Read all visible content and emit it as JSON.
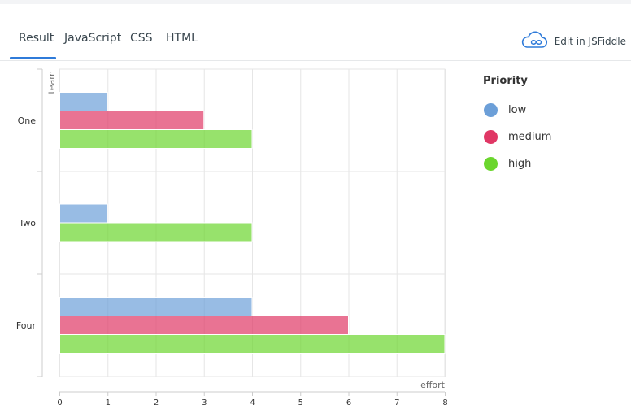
{
  "tabs": [
    {
      "label": "Result",
      "active": true
    },
    {
      "label": "JavaScript",
      "active": false
    },
    {
      "label": "CSS",
      "active": false
    },
    {
      "label": "HTML",
      "active": false
    }
  ],
  "jsfiddle": {
    "label": "Edit in JSFiddle",
    "icon": "cloud-icon"
  },
  "legend": {
    "title": "Priority"
  },
  "chart_data": {
    "type": "bar",
    "orientation": "horizontal",
    "categories": [
      "One",
      "Two",
      "Four"
    ],
    "xlabel": "effort",
    "ylabel": "team",
    "xlim": [
      0,
      8
    ],
    "xticks": [
      0,
      1,
      2,
      3,
      4,
      5,
      6,
      7,
      8
    ],
    "grid": true,
    "legend_position": "right",
    "series": [
      {
        "name": "low",
        "color": "#6c9fd8",
        "values": [
          1,
          1,
          4
        ]
      },
      {
        "name": "medium",
        "color": "#e03765",
        "values": [
          3,
          null,
          6
        ]
      },
      {
        "name": "high",
        "color": "#6bd62e",
        "values": [
          4,
          4,
          8
        ]
      }
    ]
  }
}
